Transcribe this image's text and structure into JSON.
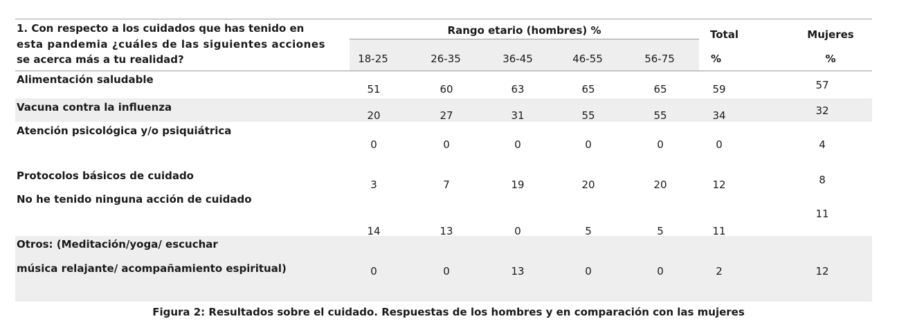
{
  "table": {
    "question_lines": [
      "1. Con respecto a los cuidados que has tenido en",
      "esta pandemia ¿cuáles de las siguientes acciones",
      "se acerca más a tu realidad?"
    ],
    "group_header": "Rango etario (hombres) %",
    "total_header": "Total",
    "total_unit": "%",
    "women_header": "Mujeres",
    "women_unit": "%",
    "age_ranges": [
      "18-25",
      "26-35",
      "36-45",
      "46-55",
      "56-75"
    ],
    "rows": [
      {
        "label": [
          "Alimentación saludable"
        ],
        "values": [
          "51",
          "60",
          "63",
          "65",
          "65"
        ],
        "total": "59",
        "women": "57"
      },
      {
        "label": [
          "Vacuna contra la influenza"
        ],
        "values": [
          "20",
          "27",
          "31",
          "55",
          "55"
        ],
        "total": "34",
        "women": "32"
      },
      {
        "label": [
          "Atención psicológica y/o psiquiátrica"
        ],
        "values": [
          "0",
          "0",
          "0",
          "0",
          "0"
        ],
        "total": "0",
        "women": "4"
      },
      {
        "label": [
          "Protocolos básicos de cuidado"
        ],
        "values": [
          "3",
          "7",
          "19",
          "20",
          "20"
        ],
        "total": "12",
        "women": "8"
      },
      {
        "label": [
          "No he tenido ninguna acción de cuidado"
        ],
        "values": [
          "14",
          "13",
          "0",
          "5",
          "5"
        ],
        "total": "11",
        "women": "11"
      },
      {
        "label": [
          "Otros: (Meditación/yoga/ escuchar",
          "música relajante/ acompañamiento espiritual)"
        ],
        "values": [
          "0",
          "0",
          "13",
          "0",
          "0"
        ],
        "total": "2",
        "women": "12"
      }
    ]
  },
  "caption": "Figura 2: Resultados sobre el cuidado. Respuestas de los hombres y en comparación con las mujeres"
}
